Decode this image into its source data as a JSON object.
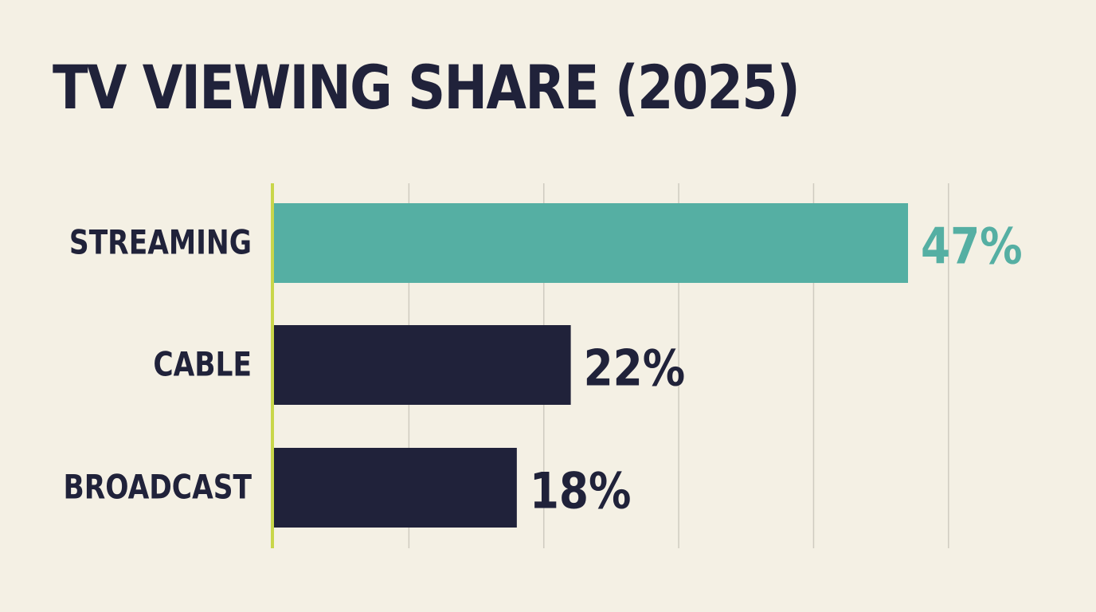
{
  "chart_data": {
    "type": "bar",
    "orientation": "horizontal",
    "title": "TV VIEWING SHARE (2025)",
    "categories": [
      "STREAMING",
      "CABLE",
      "BROADCAST"
    ],
    "values": [
      47,
      22,
      18
    ],
    "value_labels": [
      "47%",
      "22%",
      "18%"
    ],
    "unit": "%",
    "xlim": [
      0,
      50
    ],
    "grid": true,
    "colors": {
      "highlight": "#55afa3",
      "bar": "#20223a",
      "axis": "#c8d64a",
      "grid": "#cfcbc0",
      "background": "#f4f0e4",
      "text": "#20223a"
    }
  }
}
